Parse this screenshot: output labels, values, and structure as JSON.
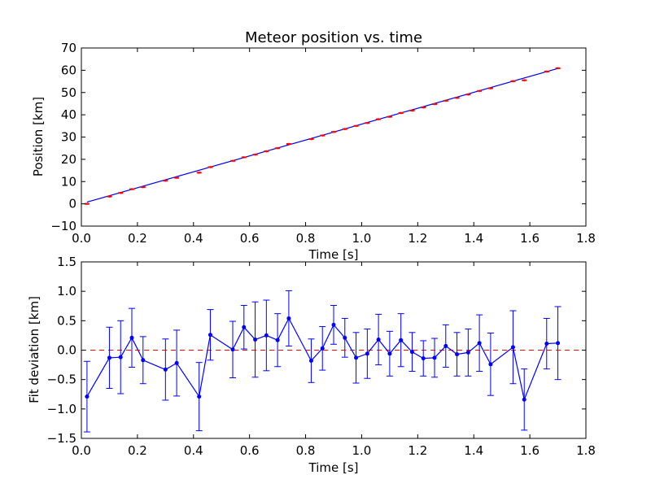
{
  "chart_data": [
    {
      "type": "scatter",
      "title": "Meteor position vs. time",
      "xlabel": "Time [s]",
      "ylabel": "Position [km]",
      "xlim": [
        0.0,
        1.8
      ],
      "ylim": [
        -10,
        70
      ],
      "x_ticks": [
        "0.0",
        "0.2",
        "0.4",
        "0.6",
        "0.8",
        "1.0",
        "1.2",
        "1.4",
        "1.6",
        "1.8"
      ],
      "y_ticks": [
        "−10",
        "0",
        "10",
        "20",
        "30",
        "40",
        "50",
        "60",
        "70"
      ],
      "x_tick_values": [
        0.0,
        0.2,
        0.4,
        0.6,
        0.8,
        1.0,
        1.2,
        1.4,
        1.6,
        1.8
      ],
      "y_tick_values": [
        -10,
        0,
        10,
        20,
        30,
        40,
        50,
        60,
        70
      ],
      "series": [
        {
          "kind": "points",
          "color": "#ff0000",
          "error": 0.5,
          "x": [
            0.02,
            0.1,
            0.14,
            0.18,
            0.22,
            0.3,
            0.34,
            0.42,
            0.46,
            0.54,
            0.58,
            0.62,
            0.66,
            0.7,
            0.74,
            0.82,
            0.86,
            0.9,
            0.94,
            0.98,
            1.02,
            1.06,
            1.1,
            1.14,
            1.18,
            1.22,
            1.26,
            1.3,
            1.34,
            1.38,
            1.42,
            1.46,
            1.54,
            1.58,
            1.66,
            1.7
          ],
          "y": [
            0.0,
            3.3,
            4.9,
            6.6,
            7.5,
            10.4,
            11.7,
            14.0,
            16.5,
            19.3,
            20.9,
            22.1,
            23.6,
            25.0,
            26.9,
            29.1,
            30.7,
            32.3,
            33.6,
            35.0,
            36.3,
            38.0,
            39.1,
            40.8,
            41.9,
            43.3,
            44.8,
            46.3,
            47.6,
            49.1,
            50.7,
            51.9,
            55.1,
            55.5,
            59.4,
            60.9
          ]
        },
        {
          "kind": "fit-line",
          "color": "#0000ff",
          "x": [
            0.02,
            1.7
          ],
          "y": [
            0.8,
            60.8
          ]
        }
      ]
    },
    {
      "type": "line",
      "xlabel": "Time [s]",
      "ylabel": "Fit deviation [km]",
      "xlim": [
        0.0,
        1.8
      ],
      "ylim": [
        -1.5,
        1.5
      ],
      "x_ticks": [
        "0.0",
        "0.2",
        "0.4",
        "0.6",
        "0.8",
        "1.0",
        "1.2",
        "1.4",
        "1.6",
        "1.8"
      ],
      "y_ticks": [
        "−1.5",
        "−1.0",
        "−0.5",
        "0.0",
        "0.5",
        "1.0",
        "1.5"
      ],
      "x_tick_values": [
        0.0,
        0.2,
        0.4,
        0.6,
        0.8,
        1.0,
        1.2,
        1.4,
        1.6,
        1.8
      ],
      "y_tick_values": [
        -1.5,
        -1.0,
        -0.5,
        0.0,
        0.5,
        1.0,
        1.5
      ],
      "reference_line": {
        "y": 0.0,
        "color": "#ff0000",
        "style": "dashed"
      },
      "series": [
        {
          "color": "#0000ff",
          "x": [
            0.02,
            0.1,
            0.14,
            0.18,
            0.22,
            0.3,
            0.34,
            0.42,
            0.46,
            0.54,
            0.58,
            0.62,
            0.66,
            0.7,
            0.74,
            0.82,
            0.86,
            0.9,
            0.94,
            0.98,
            1.02,
            1.06,
            1.1,
            1.14,
            1.18,
            1.22,
            1.26,
            1.3,
            1.34,
            1.38,
            1.42,
            1.46,
            1.54,
            1.58,
            1.66,
            1.7
          ],
          "y": [
            -0.79,
            -0.13,
            -0.12,
            0.21,
            -0.17,
            -0.33,
            -0.22,
            -0.79,
            0.26,
            0.01,
            0.39,
            0.18,
            0.25,
            0.17,
            0.54,
            -0.18,
            0.03,
            0.43,
            0.21,
            -0.13,
            -0.06,
            0.18,
            -0.06,
            0.17,
            -0.03,
            -0.14,
            -0.13,
            0.07,
            -0.07,
            -0.04,
            0.12,
            -0.24,
            0.05,
            -0.84,
            0.11,
            0.12
          ],
          "error": [
            0.6,
            0.52,
            0.62,
            0.5,
            0.4,
            0.52,
            0.56,
            0.58,
            0.43,
            0.48,
            0.37,
            0.64,
            0.6,
            0.45,
            0.47,
            0.37,
            0.37,
            0.33,
            0.33,
            0.43,
            0.42,
            0.43,
            0.38,
            0.45,
            0.33,
            0.3,
            0.33,
            0.36,
            0.37,
            0.4,
            0.48,
            0.53,
            0.62,
            0.52,
            0.43,
            0.62
          ]
        }
      ]
    }
  ]
}
